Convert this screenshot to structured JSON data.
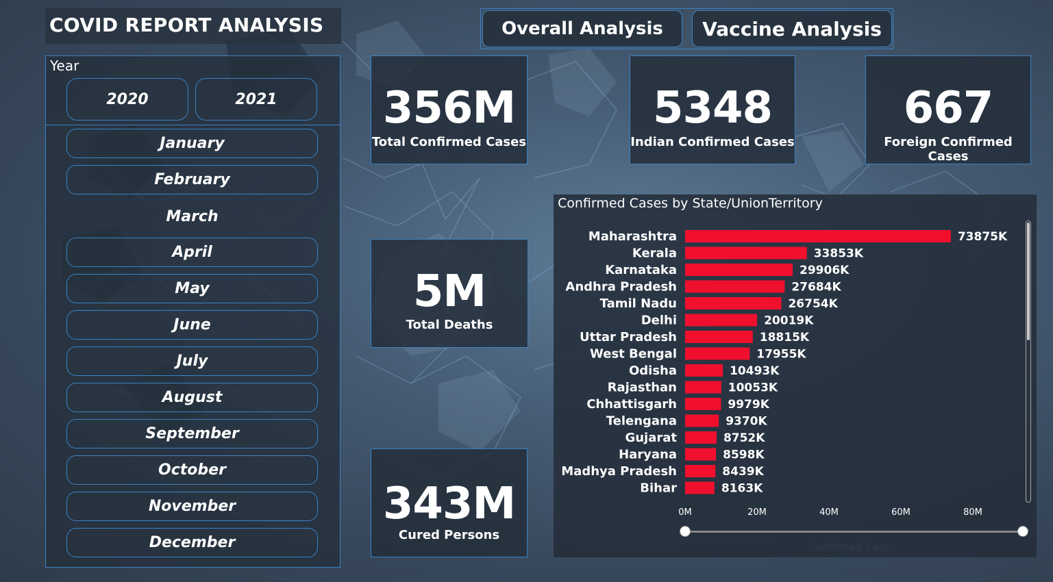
{
  "title": "COVID REPORT ANALYSIS",
  "nav": {
    "overall": "Overall Analysis",
    "vaccine": "Vaccine Analysis"
  },
  "slicer": {
    "year_label": "Year",
    "years": [
      "2020",
      "2021"
    ],
    "months": [
      "January",
      "February",
      "March",
      "April",
      "May",
      "June",
      "July",
      "August",
      "September",
      "October",
      "November",
      "December"
    ]
  },
  "cards": {
    "total_confirmed": {
      "value": "356M",
      "label": "Total Confirmed Cases"
    },
    "indian_confirmed": {
      "value": "5348",
      "label": "Indian Confirmed Cases"
    },
    "foreign_confirmed": {
      "value": "667",
      "label": "Foreign Confirmed Cases"
    },
    "total_deaths": {
      "value": "5M",
      "label": "Total Deaths"
    },
    "cured": {
      "value": "343M",
      "label": "Cured Persons"
    }
  },
  "colors": {
    "bar": "#f0102e",
    "accent_border": "#3b82c4"
  },
  "chart_data": {
    "type": "bar",
    "orientation": "horizontal",
    "title": "Confirmed Cases by State/UnionTerritory",
    "xlabel": "Confirmed Cases",
    "categories": [
      "Maharashtra",
      "Kerala",
      "Karnataka",
      "Andhra Pradesh",
      "Tamil Nadu",
      "Delhi",
      "Uttar Pradesh",
      "West Bengal",
      "Odisha",
      "Rajasthan",
      "Chhattisgarh",
      "Telengana",
      "Gujarat",
      "Haryana",
      "Madhya Pradesh",
      "Bihar"
    ],
    "values": [
      73875,
      33853,
      29906,
      27684,
      26754,
      20019,
      18815,
      17955,
      10493,
      10053,
      9979,
      9370,
      8752,
      8598,
      8439,
      8163
    ],
    "value_labels": [
      "73875K",
      "33853K",
      "29906K",
      "27684K",
      "26754K",
      "20019K",
      "18815K",
      "17955K",
      "10493K",
      "10053K",
      "9979K",
      "9370K",
      "8752K",
      "8598K",
      "8439K",
      "8163K"
    ],
    "x_ticks": [
      "0M",
      "20M",
      "40M",
      "60M",
      "80M"
    ],
    "x_tick_values": [
      0,
      20000,
      40000,
      60000,
      80000
    ],
    "xlim": [
      0,
      80000
    ]
  }
}
